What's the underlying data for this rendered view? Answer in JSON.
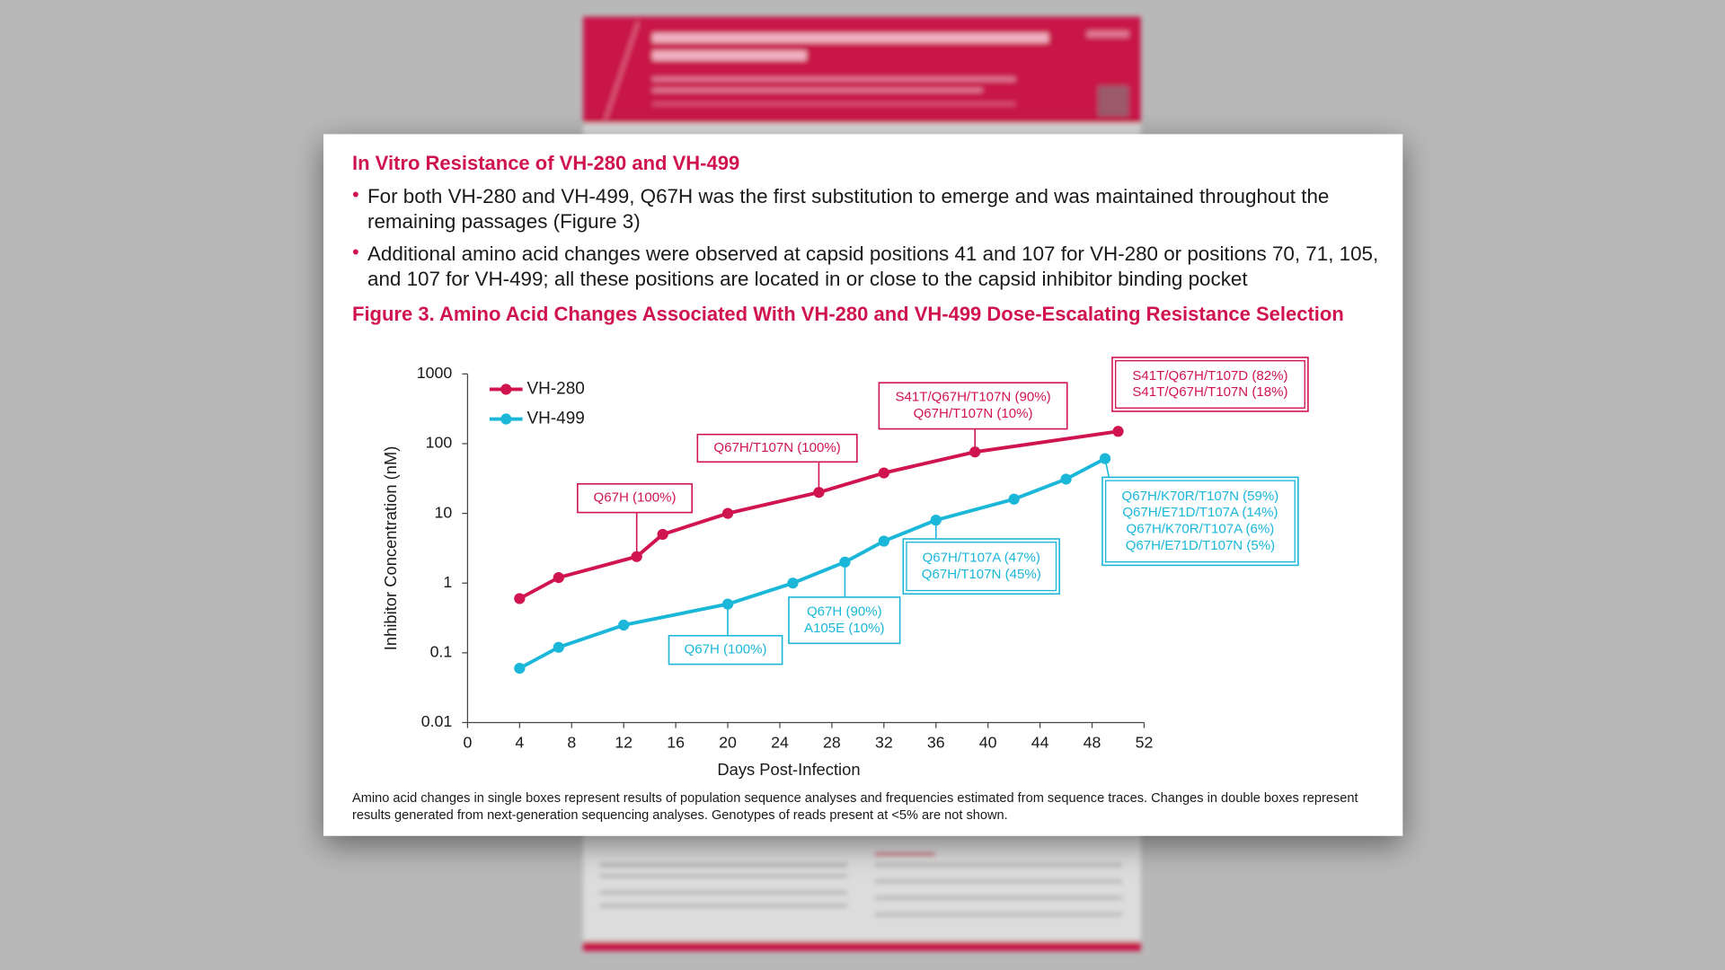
{
  "section_title": "In Vitro Resistance of VH-280 and VH-499",
  "bullets": [
    "For both VH-280 and VH-499, Q67H was the first substitution to emerge and was maintained throughout the remaining passages (Figure 3)",
    "Additional amino acid changes were observed at capsid positions 41 and 107 for VH-280 or positions 70, 71, 105, and 107 for VH-499; all these positions are located in or close to the capsid inhibitor binding pocket"
  ],
  "figure_title": "Figure 3. Amino Acid Changes Associated With VH-280 and VH-499 Dose-Escalating Resistance Selection",
  "caption": "Amino acid changes in single boxes represent results of population sequence analyses and frequencies estimated from sequence traces. Changes in double boxes represent results generated from next-generation sequencing analyses. Genotypes of reads present at <5% are not shown.",
  "chart_data": {
    "type": "line",
    "xlabel": "Days Post-Infection",
    "ylabel": "Inhibitor Concentration (nM)",
    "xlim": [
      0,
      52
    ],
    "xticks": [
      0,
      4,
      8,
      12,
      16,
      20,
      24,
      28,
      32,
      36,
      40,
      44,
      48,
      52
    ],
    "ylim": [
      0.01,
      1000
    ],
    "yticks": [
      0.01,
      0.1,
      1,
      10,
      100,
      1000
    ],
    "yscale": "log",
    "legend": "upper left",
    "series": [
      {
        "name": "VH-280",
        "color": "#d0144f",
        "x": [
          4,
          7,
          13,
          15,
          20,
          27,
          32,
          39,
          50
        ],
        "values": [
          0.6,
          1.2,
          2.4,
          5,
          10,
          20,
          38,
          76,
          150
        ]
      },
      {
        "name": "VH-499",
        "color": "#1ab7d9",
        "x": [
          4,
          7,
          12,
          20,
          25,
          29,
          32,
          36,
          42,
          46,
          49
        ],
        "values": [
          0.06,
          0.12,
          0.25,
          0.5,
          1,
          2,
          4,
          8,
          16,
          31,
          61
        ]
      }
    ],
    "annotations": [
      {
        "color": "#d0144f",
        "double": false,
        "lines": [
          "Q67H (100%)"
        ]
      },
      {
        "color": "#d0144f",
        "double": false,
        "lines": [
          "Q67H/T107N (100%)"
        ]
      },
      {
        "color": "#d0144f",
        "double": false,
        "lines": [
          "S41T/Q67H/T107N (90%)",
          "Q67H/T107N (10%)"
        ]
      },
      {
        "color": "#d0144f",
        "double": true,
        "lines": [
          "S41T/Q67H/T107D (82%)",
          "S41T/Q67H/T107N (18%)"
        ]
      },
      {
        "color": "#1ab7d9",
        "double": false,
        "lines": [
          "Q67H (100%)"
        ]
      },
      {
        "color": "#1ab7d9",
        "double": false,
        "lines": [
          "Q67H (90%)",
          "A105E (10%)"
        ]
      },
      {
        "color": "#1ab7d9",
        "double": true,
        "lines": [
          "Q67H/T107A (47%)",
          "Q67H/T107N (45%)"
        ]
      },
      {
        "color": "#1ab7d9",
        "double": true,
        "lines": [
          "Q67H/K70R/T107N (59%)",
          "Q67H/E71D/T107A (14%)",
          "Q67H/K70R/T107A (6%)",
          "Q67H/E71D/T107N (5%)"
        ]
      }
    ]
  }
}
